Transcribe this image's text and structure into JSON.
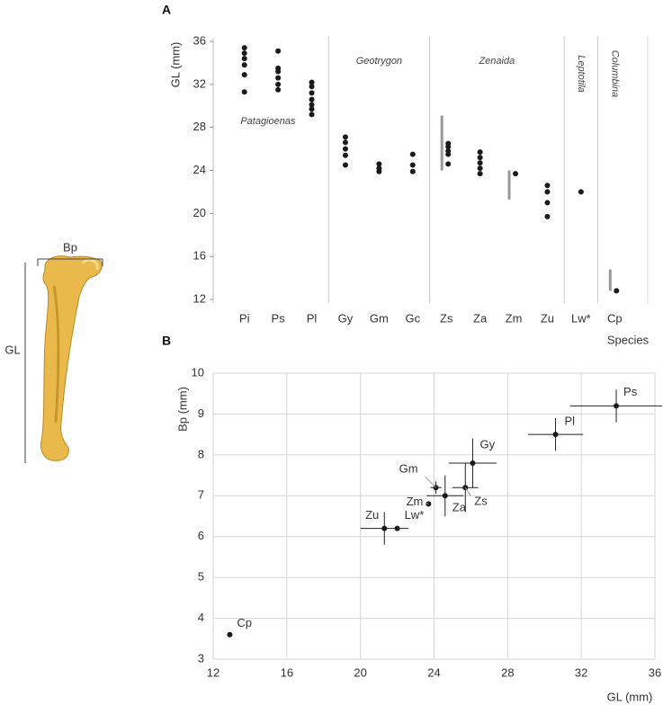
{
  "figure": {
    "bp_label": "Bp",
    "gl_label": "GL"
  },
  "chart_data": [
    {
      "type": "strip",
      "panel": "A",
      "y_label": "GL (mm)",
      "x_label": "Species",
      "categories": [
        "Pi",
        "Ps",
        "Pl",
        "Gy",
        "Gm",
        "Gc",
        "Zs",
        "Za",
        "Zm",
        "Zu",
        "Lw*",
        "Cp"
      ],
      "values": [
        [
          35.4,
          34.9,
          34.4,
          33.8,
          32.9,
          31.3
        ],
        [
          35.1,
          33.5,
          33.2,
          32.6,
          32.0,
          31.5
        ],
        [
          32.2,
          31.8,
          31.2,
          30.6,
          30.1,
          29.7,
          29.2
        ],
        [
          27.1,
          26.6,
          26.0,
          25.4,
          24.5
        ],
        [
          24.6,
          24.2,
          23.9
        ],
        [
          25.5,
          24.5,
          23.9
        ],
        [
          26.5,
          26.2,
          25.8,
          25.5,
          24.6
        ],
        [
          25.7,
          25.2,
          24.7,
          24.2,
          23.7
        ],
        [
          23.7
        ],
        [
          22.6,
          22.0,
          21.0,
          19.7
        ],
        [
          22.0
        ],
        [
          12.8
        ]
      ],
      "ranges": [
        null,
        null,
        null,
        null,
        null,
        null,
        [
          24.0,
          29.1
        ],
        null,
        [
          21.3,
          24.0
        ],
        null,
        null,
        [
          12.8,
          14.8
        ]
      ],
      "groups": [
        {
          "label": "Patagioenas",
          "members": [
            "Pi",
            "Ps",
            "Pl"
          ]
        },
        {
          "label": "Geotrygon",
          "members": [
            "Gy",
            "Gm",
            "Gc"
          ]
        },
        {
          "label": "Zenaida",
          "members": [
            "Zs",
            "Za",
            "Zm",
            "Zu"
          ]
        },
        {
          "label": "Leptotila",
          "members": [
            "Lw*"
          ]
        },
        {
          "label": "Columbina",
          "members": [
            "Cp"
          ]
        }
      ],
      "color": "#1a1a1a",
      "range_color": "#999999",
      "ylim": [
        12,
        36
      ],
      "yticks": [
        12,
        16,
        20,
        24,
        28,
        32,
        36
      ]
    },
    {
      "type": "scatter",
      "panel": "B",
      "x_label": "GL (mm)",
      "y_label": "Bp (mm)",
      "points": [
        {
          "label": "Ps",
          "x": 33.9,
          "y": 9.2,
          "xerr": 2.5,
          "yerr": 0.4
        },
        {
          "label": "Pl",
          "x": 30.6,
          "y": 8.5,
          "xerr": 1.5,
          "yerr": 0.4
        },
        {
          "label": "Gy",
          "x": 26.1,
          "y": 7.8,
          "xerr": 1.3,
          "yerr": 0.6
        },
        {
          "label": "Gm",
          "x": 24.1,
          "y": 7.2,
          "xerr": 0.3,
          "yerr": 0.15
        },
        {
          "label": "Zs",
          "x": 25.7,
          "y": 7.2,
          "xerr": 0.7,
          "yerr": 0.6
        },
        {
          "label": "Za",
          "x": 24.6,
          "y": 7.0,
          "xerr": 1.0,
          "yerr": 0.5
        },
        {
          "label": "Zm",
          "x": 23.7,
          "y": 6.8,
          "xerr": null,
          "yerr": null
        },
        {
          "label": "Zu",
          "x": 21.3,
          "y": 6.2,
          "xerr": 1.3,
          "yerr": 0.4
        },
        {
          "label": "Lw*",
          "x": 22.0,
          "y": 6.2,
          "xerr": null,
          "yerr": null
        },
        {
          "label": "Cp",
          "x": 12.9,
          "y": 3.6,
          "xerr": null,
          "yerr": null
        }
      ],
      "color": "#1a1a1a",
      "grid": true,
      "xlim": [
        12,
        36
      ],
      "xticks": [
        12,
        16,
        20,
        24,
        28,
        32,
        36
      ],
      "ylim": [
        3,
        10
      ],
      "yticks": [
        3,
        4,
        5,
        6,
        7,
        8,
        9,
        10
      ]
    }
  ]
}
